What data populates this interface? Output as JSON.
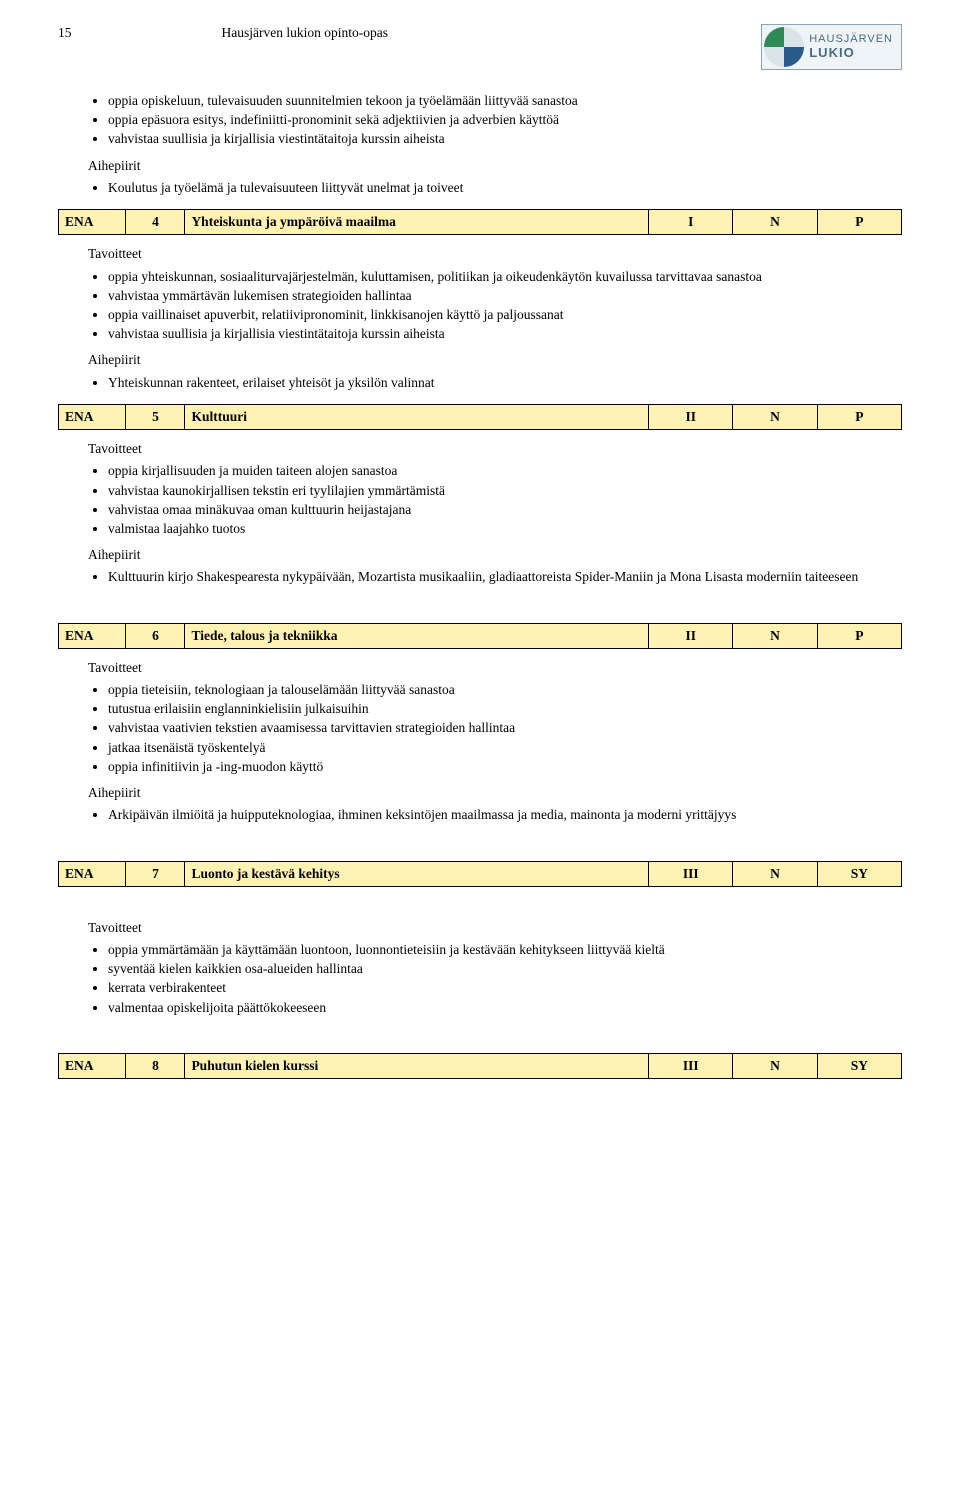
{
  "header": {
    "pageNumber": "15",
    "title": "Hausjärven lukion opinto-opas",
    "logoTop": "HAUSJÄRVEN",
    "logoBottom": "LUKIO"
  },
  "labels": {
    "aihepiirit": "Aihepiirit",
    "tavoitteet": "Tavoitteet"
  },
  "intro": {
    "bullets": [
      "oppia opiskeluun, tulevaisuuden suunnitelmien tekoon ja työelämään liittyvää sanastoa",
      "oppia epäsuora esitys, indefiniitti-pronominit sekä adjektiivien ja adverbien käyttöä",
      "vahvistaa suullisia ja kirjallisia viestintätaitoja kurssin aiheista"
    ],
    "aihepiirit": [
      "Koulutus ja työelämä ja tulevaisuuteen liittyvät unelmat ja toiveet"
    ]
  },
  "courses": [
    {
      "code": "ENA",
      "num": "4",
      "title": "Yhteiskunta ja ympäröivä maailma",
      "col1": "I",
      "col2": "N",
      "col3": "P",
      "tavoitteet": [
        "oppia yhteiskunnan, sosiaaliturvajärjestelmän, kuluttamisen, politiikan ja oikeudenkäytön kuvailussa tarvittavaa sanastoa",
        "vahvistaa ymmärtävän lukemisen strategioiden hallintaa",
        "oppia vaillinaiset apuverbit, relatiivipronominit, linkkisanojen käyttö ja paljoussanat",
        "vahvistaa suullisia ja kirjallisia viestintätaitoja kurssin aiheista"
      ],
      "aihepiirit": [
        "Yhteiskunnan rakenteet, erilaiset yhteisöt ja yksilön valinnat"
      ]
    },
    {
      "code": "ENA",
      "num": "5",
      "title": "Kulttuuri",
      "col1": "II",
      "col2": "N",
      "col3": "P",
      "tavoitteet": [
        "oppia kirjallisuuden ja muiden taiteen alojen sanastoa",
        "vahvistaa kaunokirjallisen tekstin eri tyylilajien ymmärtämistä",
        "vahvistaa omaa minäkuvaa oman kulttuurin heijastajana",
        "valmistaa laajahko tuotos"
      ],
      "aihepiirit": [
        "Kulttuurin kirjo Shakespearesta nykypäivään, Mozartista musikaaliin, gladiaattoreista Spider-Maniin ja Mona Lisasta moderniin taiteeseen"
      ]
    },
    {
      "code": "ENA",
      "num": "6",
      "title": "Tiede, talous ja tekniikka",
      "col1": "II",
      "col2": "N",
      "col3": "P",
      "tavoitteet": [
        "oppia tieteisiin, teknologiaan ja talouselämään liittyvää sanastoa",
        "tutustua erilaisiin englanninkielisiin julkaisuihin",
        "vahvistaa vaativien tekstien avaamisessa tarvittavien strategioiden hallintaa",
        "jatkaa itsenäistä työskentelyä",
        "oppia infinitiivin ja -ing-muodon käyttö"
      ],
      "aihepiirit": [
        "Arkipäivän ilmiöitä ja huipputeknologiaa, ihminen keksintöjen maailmassa ja media, mainonta ja moderni yrittäjyys"
      ]
    },
    {
      "code": "ENA",
      "num": "7",
      "title": "Luonto ja kestävä kehitys",
      "col1": "III",
      "col2": "N",
      "col3": "SY",
      "tavoitteet": [
        "oppia ymmärtämään ja käyttämään luontoon, luonnontieteisiin ja kestävään kehitykseen liittyvää kieltä",
        "syventää kielen kaikkien osa-alueiden hallintaa",
        "kerrata verbirakenteet",
        "valmentaa opiskelijoita päättökokeeseen"
      ],
      "aihepiirit": []
    },
    {
      "code": "ENA",
      "num": "8",
      "title": "Puhutun kielen kurssi",
      "col1": "III",
      "col2": "N",
      "col3": "SY",
      "tavoitteet": [],
      "aihepiirit": []
    }
  ]
}
